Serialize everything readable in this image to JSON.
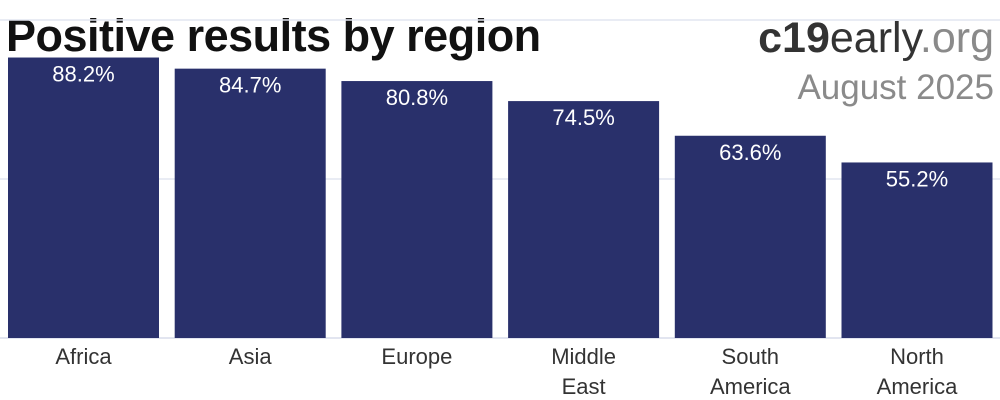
{
  "header": {
    "title": "Positive results by region",
    "brand_bold": "c19",
    "brand_mid": "early",
    "brand_tld": ".org",
    "date": "August 2025"
  },
  "colors": {
    "bar": "#29306b",
    "grid": "#e2e5f0",
    "label_text": "#ffffff",
    "category_text": "#333333"
  },
  "chart_data": {
    "type": "bar",
    "categories": [
      [
        "Africa"
      ],
      [
        "Asia"
      ],
      [
        "Europe"
      ],
      [
        "Middle",
        "East"
      ],
      [
        "South",
        "America"
      ],
      [
        "North",
        "America"
      ]
    ],
    "values": [
      88.2,
      84.7,
      80.8,
      74.5,
      63.6,
      55.2
    ],
    "data_labels": [
      "88.2%",
      "84.7%",
      "80.8%",
      "74.5%",
      "63.6%",
      "55.2%"
    ],
    "ylim": [
      0,
      100
    ],
    "grid": true,
    "xlabel": "",
    "ylabel": ""
  }
}
